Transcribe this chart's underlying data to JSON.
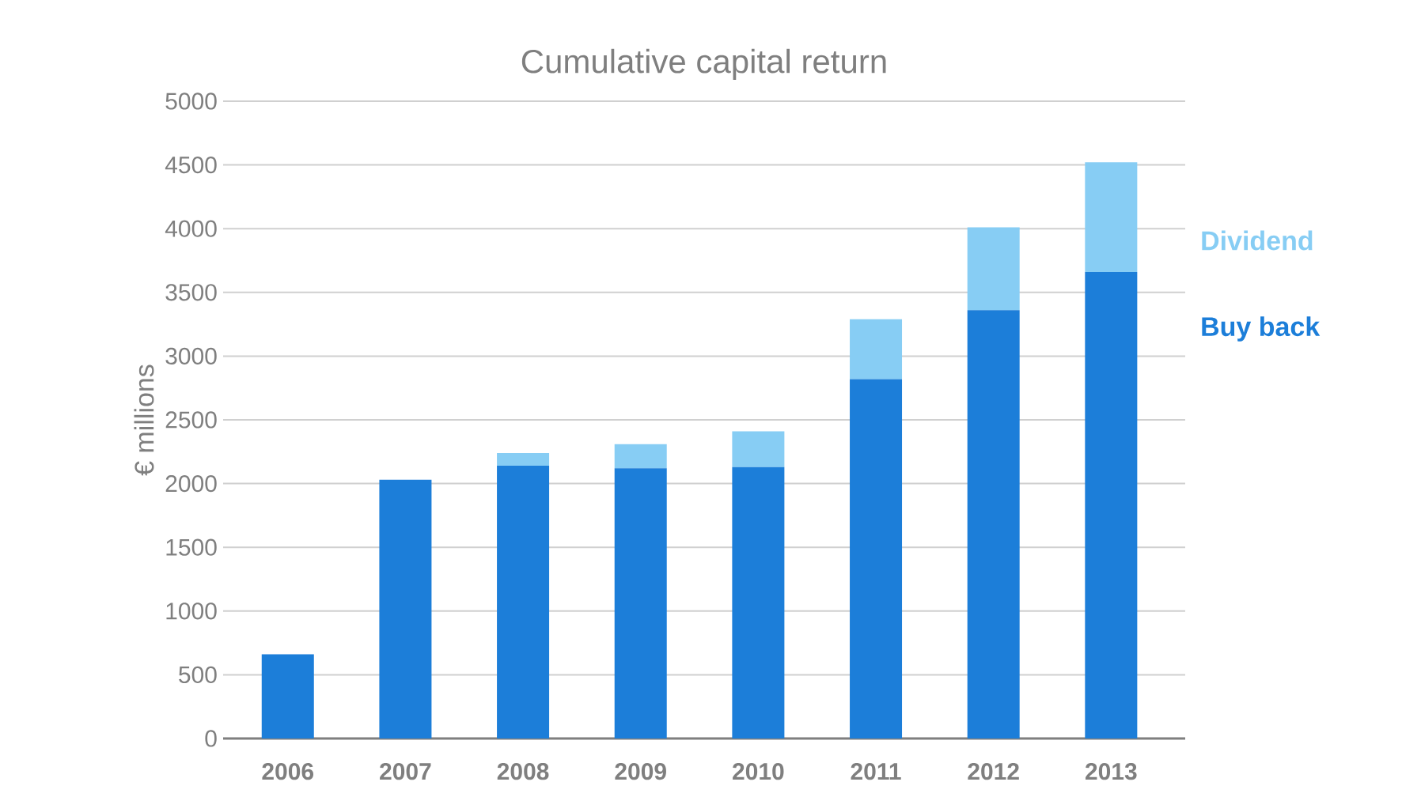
{
  "chart_data": {
    "type": "bar",
    "title": "Cumulative capital return",
    "ylabel": "€ millions",
    "stacked": true,
    "categories": [
      "2006",
      "2007",
      "2008",
      "2009",
      "2010",
      "2011",
      "2012",
      "2013"
    ],
    "series": [
      {
        "name": "Buy back",
        "color": "#1c7ed9",
        "values": [
          660,
          2030,
          2140,
          2120,
          2130,
          2820,
          3360,
          3660
        ]
      },
      {
        "name": "Dividend",
        "color": "#87cdf4",
        "values": [
          null,
          null,
          100,
          190,
          280,
          470,
          650,
          860
        ]
      }
    ],
    "ylim": [
      0,
      5000
    ],
    "yticks": [
      0,
      500,
      1000,
      1500,
      2000,
      2500,
      3000,
      3500,
      4000,
      4500,
      5000
    ],
    "grid": "y",
    "legend": "right"
  }
}
